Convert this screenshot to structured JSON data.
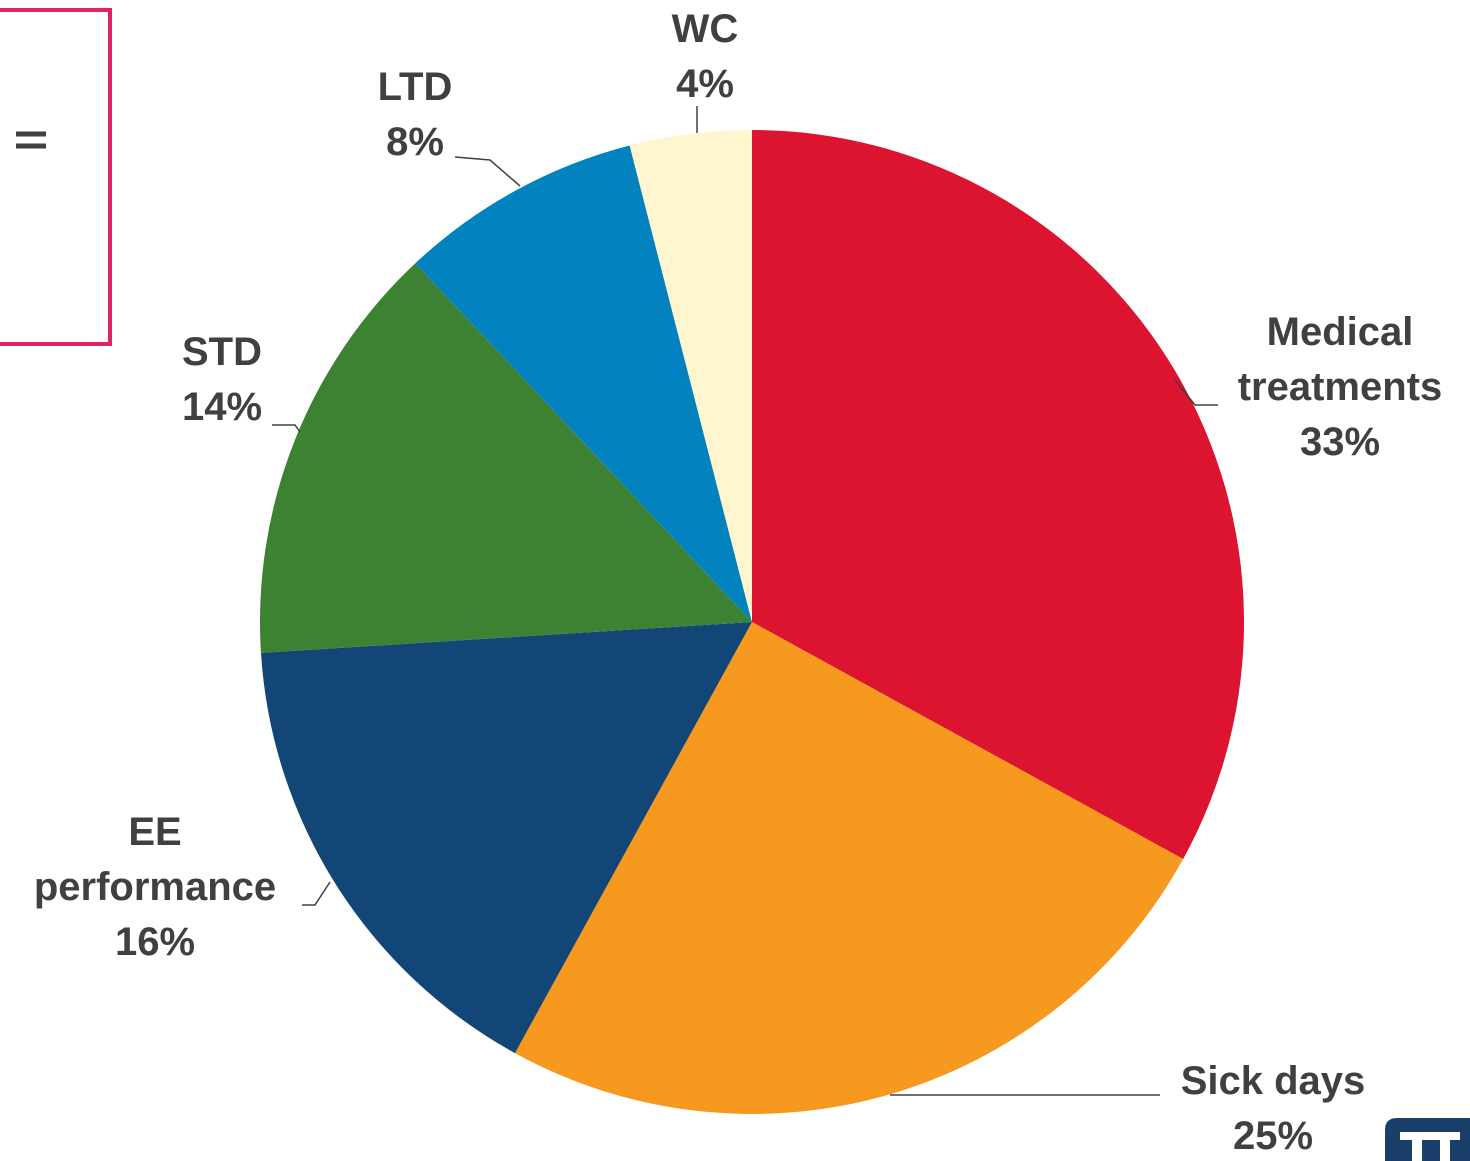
{
  "chart_data": {
    "type": "pie",
    "categories": [
      "Medical treatments",
      "Sick days",
      "EE performance",
      "STD",
      "LTD",
      "WC"
    ],
    "values": [
      33,
      25,
      16,
      14,
      8,
      4
    ],
    "value_labels": [
      "33%",
      "25%",
      "16%",
      "14%",
      "8%",
      "4%"
    ],
    "colors": [
      "#dc1430",
      "#f7991f",
      "#124676",
      "#3c8232",
      "#0283bf",
      "#fff6cf"
    ],
    "start_angle": 90,
    "direction": "clockwise"
  }
}
